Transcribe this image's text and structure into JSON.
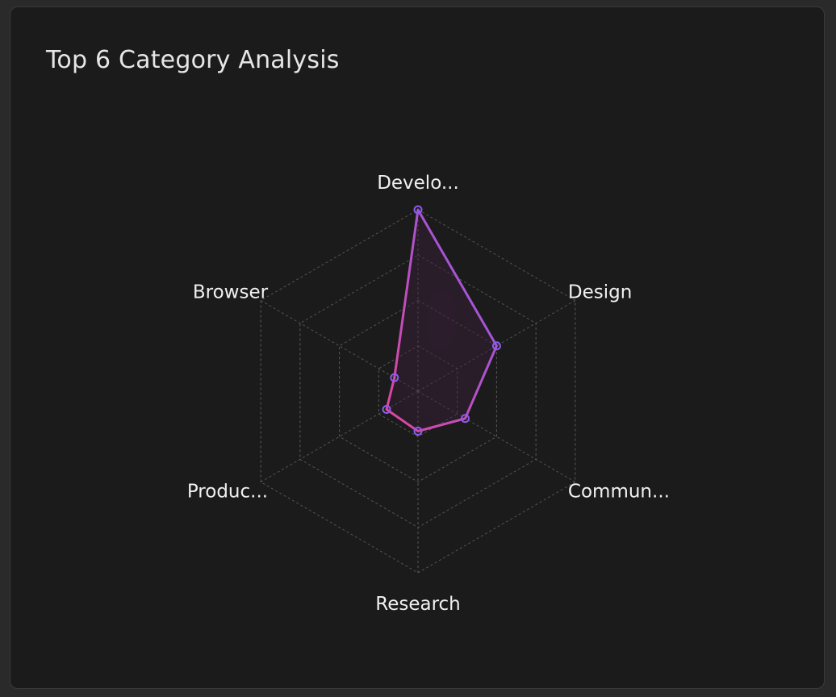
{
  "card": {
    "title": "Top 6 Category Analysis"
  },
  "chart_data": {
    "type": "radar",
    "categories": [
      "Develo...",
      "Design",
      "Commun...",
      "Research",
      "Produc...",
      "Browser"
    ],
    "series": [
      {
        "values": [
          100,
          50,
          30,
          22,
          20,
          15
        ]
      }
    ],
    "range": [
      0,
      100
    ],
    "levels": 4,
    "grid": true,
    "colors": {
      "grid": "#5a5a5a",
      "stroke_start": "#e0469a",
      "stroke_end": "#8a5cf0",
      "fill": "#3a1f3a"
    }
  }
}
